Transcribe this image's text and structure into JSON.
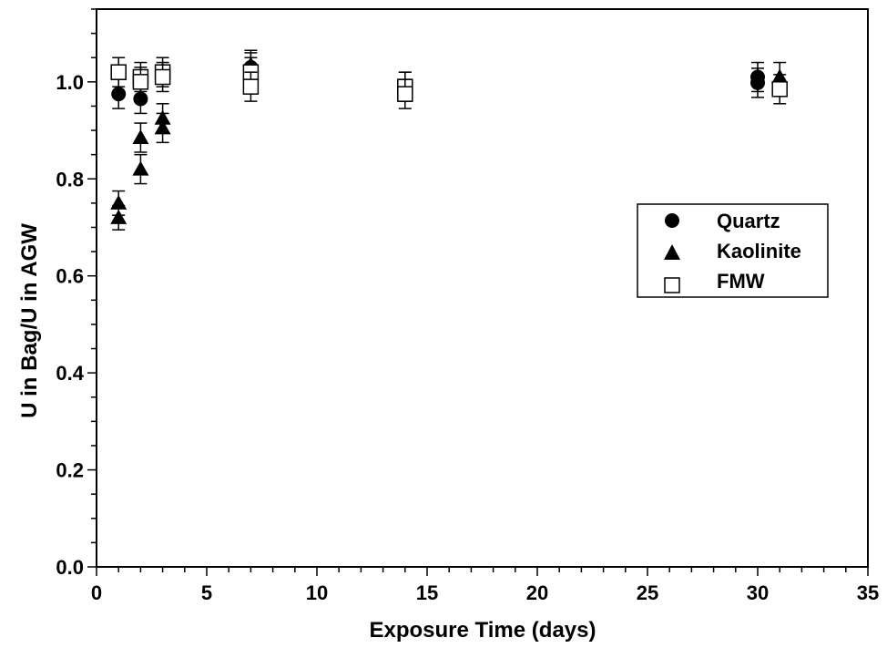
{
  "chart_data": {
    "type": "scatter",
    "xlabel": "Exposure Time (days)",
    "ylabel": "U in Bag/U in AGW",
    "xlim": [
      0,
      35
    ],
    "ylim": [
      0,
      1.15
    ],
    "xticks": [
      0,
      5,
      10,
      15,
      20,
      25,
      30,
      35
    ],
    "xtick_labels": [
      "0",
      "5",
      "10",
      "15",
      "20",
      "25",
      "30",
      "35"
    ],
    "yticks": [
      0.0,
      0.2,
      0.4,
      0.6,
      0.8,
      1.0
    ],
    "ytick_labels": [
      "0.0",
      "0.2",
      "0.4",
      "0.6",
      "0.8",
      "1.0"
    ],
    "x_minor_step": 1,
    "y_minor_step": 0.05,
    "grid": false,
    "legend_position": "right",
    "series": [
      {
        "name": "Quartz",
        "marker": "filled-circle",
        "points": [
          {
            "x": 1,
            "y": 0.975,
            "err": 0.03
          },
          {
            "x": 2,
            "y": 0.965,
            "err": 0.03
          },
          {
            "x": 7,
            "y": 1.03,
            "err": 0.03
          },
          {
            "x": 30,
            "y": 1.01,
            "err": 0.03
          },
          {
            "x": 30,
            "y": 0.998,
            "err": 0.03
          }
        ]
      },
      {
        "name": "Kaolinite",
        "marker": "filled-triangle",
        "points": [
          {
            "x": 1,
            "y": 0.75,
            "err": 0.025
          },
          {
            "x": 1,
            "y": 0.72,
            "err": 0.025
          },
          {
            "x": 2,
            "y": 0.885,
            "err": 0.03
          },
          {
            "x": 2,
            "y": 0.82,
            "err": 0.03
          },
          {
            "x": 3,
            "y": 0.925,
            "err": 0.03
          },
          {
            "x": 3,
            "y": 0.905,
            "err": 0.03
          },
          {
            "x": 7,
            "y": 1.035,
            "err": 0.03
          },
          {
            "x": 14,
            "y": 0.99,
            "err": 0.03
          },
          {
            "x": 31,
            "y": 1.01,
            "err": 0.03
          }
        ]
      },
      {
        "name": "FMW",
        "marker": "open-square",
        "points": [
          {
            "x": 1,
            "y": 1.02,
            "err": 0.03
          },
          {
            "x": 2,
            "y": 1.01,
            "err": 0.03
          },
          {
            "x": 2,
            "y": 1.0,
            "err": 0.03
          },
          {
            "x": 3,
            "y": 1.02,
            "err": 0.03
          },
          {
            "x": 3,
            "y": 1.01,
            "err": 0.03
          },
          {
            "x": 7,
            "y": 1.02,
            "err": 0.03
          },
          {
            "x": 7,
            "y": 0.99,
            "err": 0.03
          },
          {
            "x": 14,
            "y": 0.99,
            "err": 0.03
          },
          {
            "x": 14,
            "y": 0.975,
            "err": 0.03
          },
          {
            "x": 31,
            "y": 0.985,
            "err": 0.03
          }
        ]
      }
    ]
  },
  "colors": {
    "marker_fill": "#000000",
    "open_marker_fill": "#ffffff",
    "axis": "#000000"
  }
}
